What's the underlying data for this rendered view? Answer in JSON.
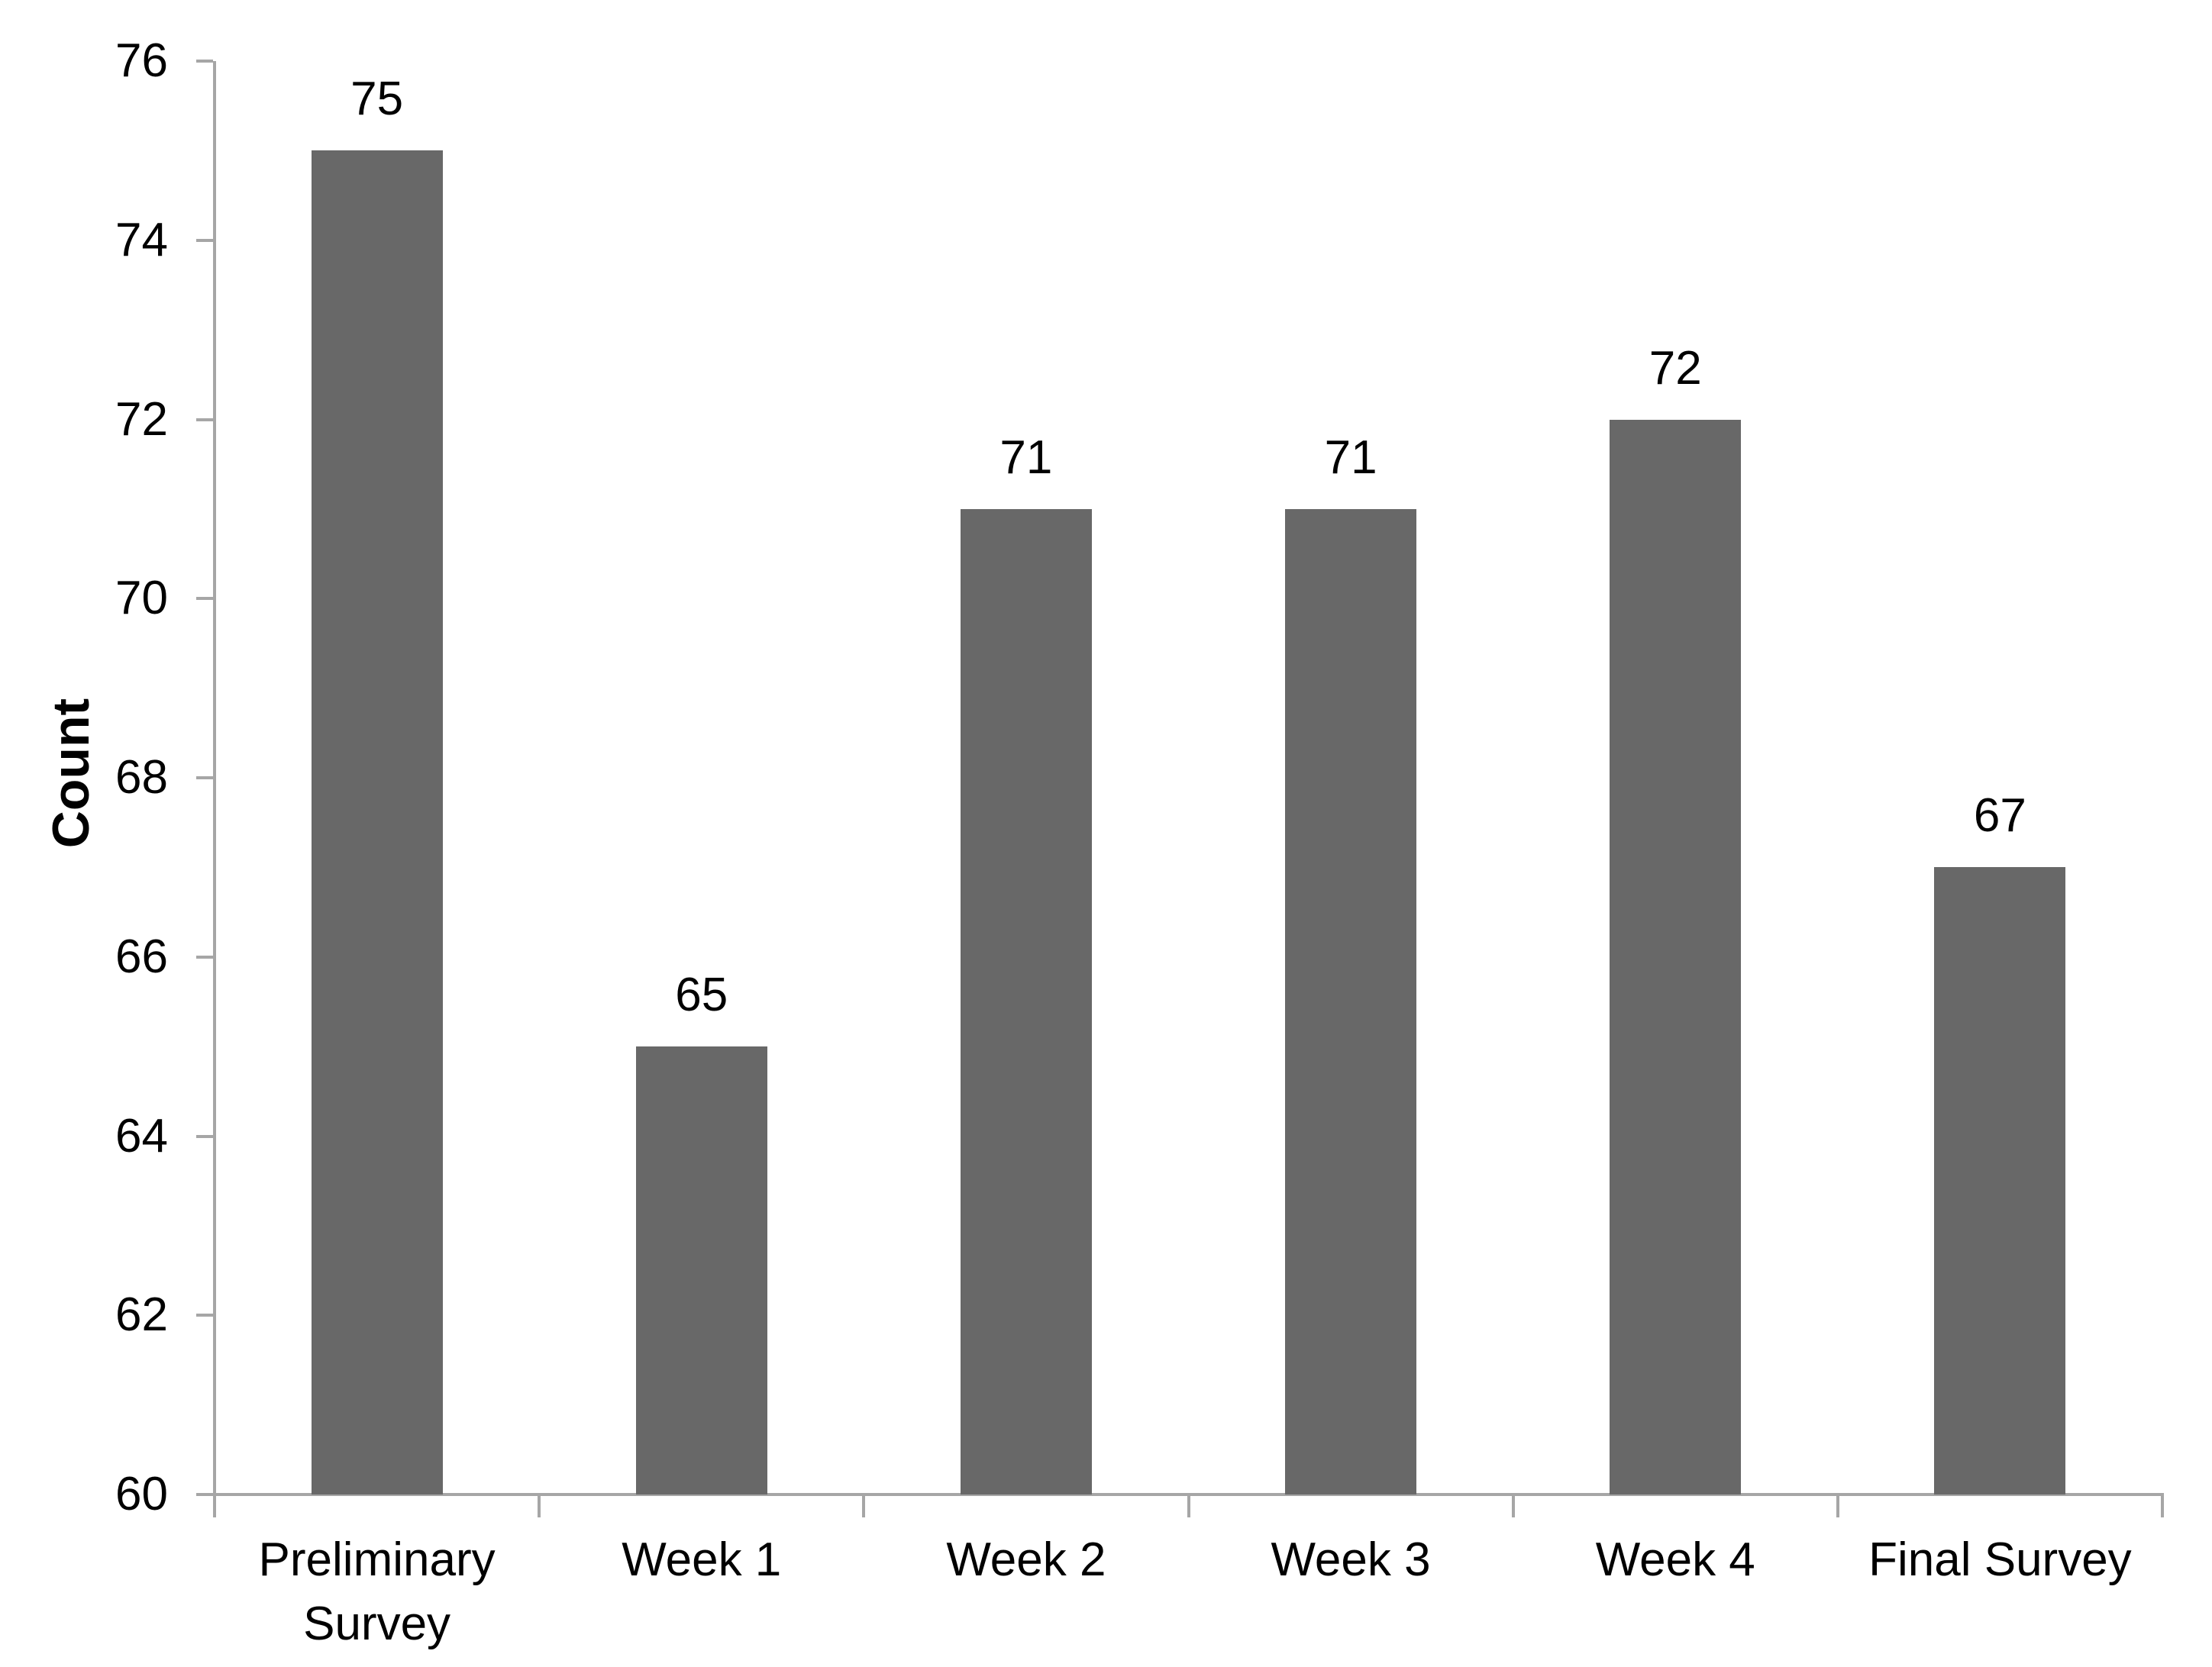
{
  "chart_data": {
    "type": "bar",
    "title": "",
    "categories": [
      "Preliminary Survey",
      "Week 1",
      "Week 2",
      "Week 3",
      "Week 4",
      "Final Survey"
    ],
    "values": [
      75,
      65,
      71,
      71,
      72,
      67
    ],
    "data_labels": [
      "75",
      "65",
      "71",
      "71",
      "72",
      "67"
    ],
    "xlabel": "",
    "ylabel": "Count",
    "ylim": [
      60,
      76
    ],
    "ytick_step": 2,
    "ytick_labels": [
      "60",
      "62",
      "64",
      "66",
      "68",
      "70",
      "72",
      "74",
      "76"
    ],
    "grid": false,
    "legend": false,
    "bar_color": "#686868",
    "axis_color": "#a6a6a6",
    "text_color": "#000000",
    "background_color": "#ffffff"
  }
}
